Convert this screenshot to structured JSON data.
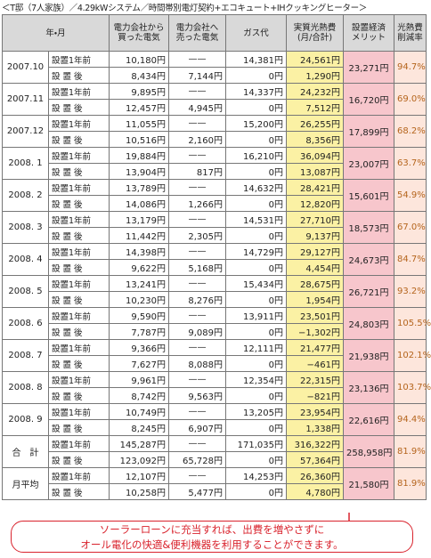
{
  "title": "＜T邸（7人家族）／4.29kWシステム／時間帯別電灯契約+エコキュート+IHクッキングヒーター＞",
  "table": {
    "header": [
      "年・月",
      "電力会社から\n買った電気",
      "電力会社へ\n売った電気",
      "ガス代",
      "実質光熱費\n(月/合計)",
      "設置経済\nメリット",
      "光熱費\n削減率"
    ],
    "rows": [
      {
        "period": "2007.10",
        "before": [
          "設置1年前",
          "10,180円",
          "——",
          "14,381円",
          "24,561円"
        ],
        "after": [
          "設 置 後",
          "8,434円",
          "7,144円",
          "0円",
          "1,290円"
        ],
        "merit": "23,271円",
        "rate": "94.7%"
      },
      {
        "period": "2007.11",
        "before": [
          "設置1年前",
          "9,895円",
          "——",
          "14,337円",
          "24,232円"
        ],
        "after": [
          "設 置 後",
          "12,457円",
          "4,945円",
          "0円",
          "7,512円"
        ],
        "merit": "16,720円",
        "rate": "69.0%"
      },
      {
        "period": "2007.12",
        "before": [
          "設置1年前",
          "11,055円",
          "——",
          "15,200円",
          "26,255円"
        ],
        "after": [
          "設 置 後",
          "10,516円",
          "2,160円",
          "0円",
          "8,356円"
        ],
        "merit": "17,899円",
        "rate": "68.2%"
      },
      {
        "period": "2008. 1",
        "before": [
          "設置1年前",
          "19,884円",
          "——",
          "16,210円",
          "36,094円"
        ],
        "after": [
          "設 置 後",
          "13,904円",
          "817円",
          "0円",
          "13,087円"
        ],
        "merit": "23,007円",
        "rate": "63.7%"
      },
      {
        "period": "2008. 2",
        "before": [
          "設置1年前",
          "13,789円",
          "——",
          "14,632円",
          "28,421円"
        ],
        "after": [
          "設 置 後",
          "14,086円",
          "1,266円",
          "0円",
          "12,820円"
        ],
        "merit": "15,601円",
        "rate": "54.9%"
      },
      {
        "period": "2008. 3",
        "before": [
          "設置1年前",
          "13,179円",
          "——",
          "14,531円",
          "27,710円"
        ],
        "after": [
          "設 置 後",
          "11,442円",
          "2,305円",
          "0円",
          "9,137円"
        ],
        "merit": "18,573円",
        "rate": "67.0%"
      },
      {
        "period": "2008. 4",
        "before": [
          "設置1年前",
          "14,398円",
          "——",
          "14,729円",
          "29,127円"
        ],
        "after": [
          "設 置 後",
          "9,622円",
          "5,168円",
          "0円",
          "4,454円"
        ],
        "merit": "24,673円",
        "rate": "84.7%"
      },
      {
        "period": "2008. 5",
        "before": [
          "設置1年前",
          "13,241円",
          "——",
          "15,434円",
          "28,675円"
        ],
        "after": [
          "設 置 後",
          "10,230円",
          "8,276円",
          "0円",
          "1,954円"
        ],
        "merit": "26,721円",
        "rate": "93.2%"
      },
      {
        "period": "2008. 6",
        "before": [
          "設置1年前",
          "9,590円",
          "——",
          "13,911円",
          "23,501円"
        ],
        "after": [
          "設 置 後",
          "7,787円",
          "9,089円",
          "0円",
          "−1,302円"
        ],
        "merit": "24,803円",
        "rate": "105.5%"
      },
      {
        "period": "2008. 7",
        "before": [
          "設置1年前",
          "9,366円",
          "——",
          "12,111円",
          "21,477円"
        ],
        "after": [
          "設 置 後",
          "7,627円",
          "8,088円",
          "0円",
          "−461円"
        ],
        "merit": "21,938円",
        "rate": "102.1%"
      },
      {
        "period": "2008. 8",
        "before": [
          "設置1年前",
          "9,961円",
          "——",
          "12,354円",
          "22,315円"
        ],
        "after": [
          "設 置 後",
          "8,742円",
          "9,563円",
          "0円",
          "−821円"
        ],
        "merit": "23,136円",
        "rate": "103.7%"
      },
      {
        "period": "2008. 9",
        "before": [
          "設置1年前",
          "10,749円",
          "——",
          "13,205円",
          "23,954円"
        ],
        "after": [
          "設 置 後",
          "8,245円",
          "6,907円",
          "0円",
          "1,338円"
        ],
        "merit": "22,616円",
        "rate": "94.4%"
      },
      {
        "period": "合　計",
        "before": [
          "設置1年前",
          "145,287円",
          "——",
          "171,035円",
          "316,322円"
        ],
        "after": [
          "設 置 後",
          "123,092円",
          "65,728円",
          "0円",
          "57,364円"
        ],
        "merit": "258,958円",
        "rate": "81.9%"
      },
      {
        "period": "月平均",
        "before": [
          "設置1年前",
          "12,107円",
          "——",
          "14,253円",
          "26,360円"
        ],
        "after": [
          "設 置 後",
          "10,258円",
          "5,477円",
          "0円",
          "4,780円"
        ],
        "merit": "21,580円",
        "rate": "81.9%"
      }
    ]
  },
  "callout": [
    "ソーラーローンに充当すれば、出費を増やさずに",
    "オール電化の快適&便利機器を利用することができます。"
  ]
}
